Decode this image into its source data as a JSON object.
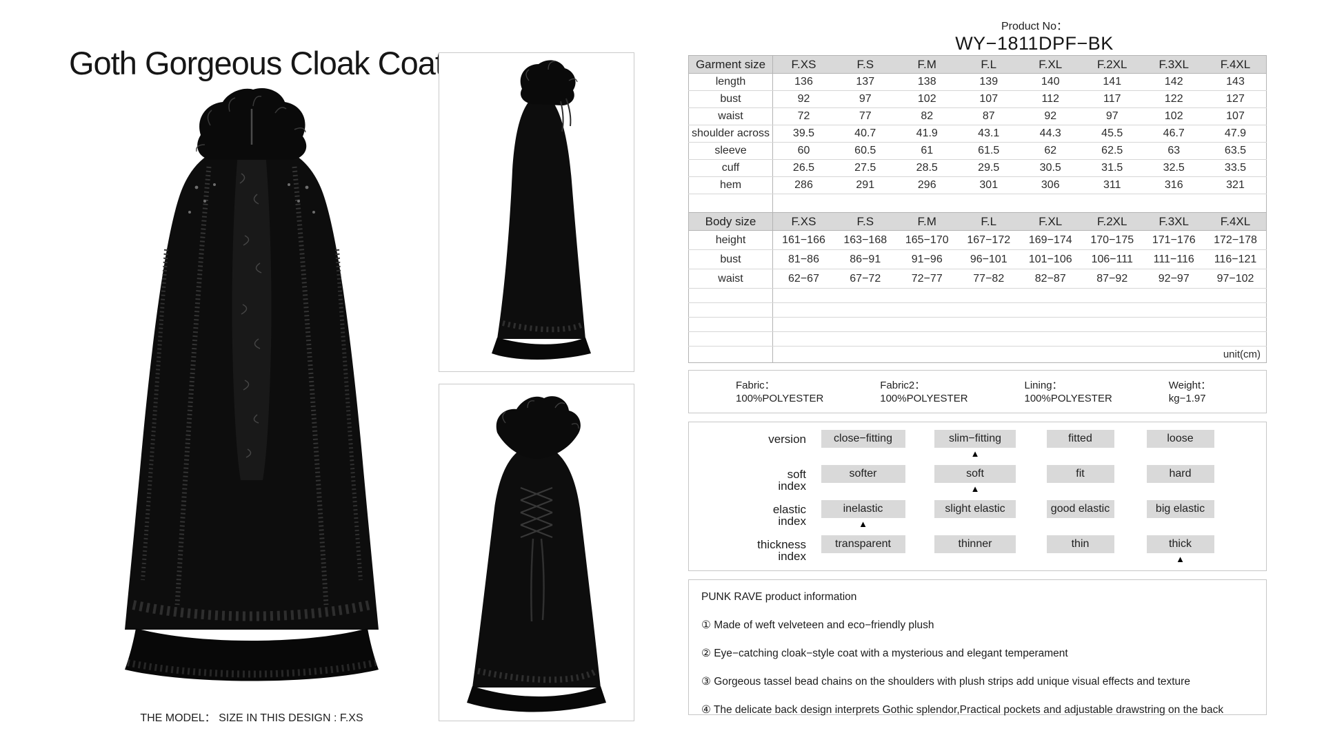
{
  "title": "Goth Gorgeous Cloak Coat",
  "product_no": {
    "label": "Product No：",
    "value": "WY−1811DPF−BK"
  },
  "garment_table": {
    "header": [
      "Garment size",
      "F.XS",
      "F.S",
      "F.M",
      "F.L",
      "F.XL",
      "F.2XL",
      "F.3XL",
      "F.4XL"
    ],
    "rows": [
      {
        "label": "length",
        "values": [
          "136",
          "137",
          "138",
          "139",
          "140",
          "141",
          "142",
          "143"
        ]
      },
      {
        "label": "bust",
        "values": [
          "92",
          "97",
          "102",
          "107",
          "112",
          "117",
          "122",
          "127"
        ]
      },
      {
        "label": "waist",
        "values": [
          "72",
          "77",
          "82",
          "87",
          "92",
          "97",
          "102",
          "107"
        ]
      },
      {
        "label": "shoulder across",
        "values": [
          "39.5",
          "40.7",
          "41.9",
          "43.1",
          "44.3",
          "45.5",
          "46.7",
          "47.9"
        ]
      },
      {
        "label": "sleeve",
        "values": [
          "60",
          "60.5",
          "61",
          "61.5",
          "62",
          "62.5",
          "63",
          "63.5"
        ]
      },
      {
        "label": "cuff",
        "values": [
          "26.5",
          "27.5",
          "28.5",
          "29.5",
          "30.5",
          "31.5",
          "32.5",
          "33.5"
        ]
      },
      {
        "label": "hem",
        "values": [
          "286",
          "291",
          "296",
          "301",
          "306",
          "311",
          "316",
          "321"
        ]
      }
    ]
  },
  "body_table": {
    "header": [
      "Body size",
      "F.XS",
      "F.S",
      "F.M",
      "F.L",
      "F.XL",
      "F.2XL",
      "F.3XL",
      "F.4XL"
    ],
    "rows": [
      {
        "label": "height",
        "values": [
          "161−166",
          "163−168",
          "165−170",
          "167−172",
          "169−174",
          "170−175",
          "171−176",
          "172−178"
        ]
      },
      {
        "label": "bust",
        "values": [
          "81−86",
          "86−91",
          "91−96",
          "96−101",
          "101−106",
          "106−111",
          "111−116",
          "116−121"
        ]
      },
      {
        "label": "waist",
        "values": [
          "62−67",
          "67−72",
          "72−77",
          "77−82",
          "82−87",
          "87−92",
          "92−97",
          "97−102"
        ]
      }
    ]
  },
  "empty_rows": 4,
  "unit_note": "unit(cm)",
  "fabric_info": [
    {
      "label": "Fabric：",
      "value": "100%POLYESTER"
    },
    {
      "label": "Fabric2：",
      "value": "100%POLYESTER"
    },
    {
      "label": "Lining：",
      "value": "100%POLYESTER"
    },
    {
      "label": "Weight：",
      "value": "kg−1.97"
    }
  ],
  "index_grid": {
    "marker": "▲",
    "rows": [
      {
        "label": "version",
        "cells": [
          "close−fitting",
          "slim−fitting",
          "fitted",
          "loose"
        ],
        "marker_index": 1
      },
      {
        "label": "soft\nindex",
        "cells": [
          "softer",
          "soft",
          "fit",
          "hard"
        ],
        "marker_index": 1
      },
      {
        "label": "elastic\nindex",
        "cells": [
          "inelastic",
          "slight elastic",
          "good elastic",
          "big elastic"
        ],
        "marker_index": 0
      },
      {
        "label": "thickness\nindex",
        "cells": [
          "transparent",
          "thinner",
          "thin",
          "thick"
        ],
        "marker_index": 3
      }
    ]
  },
  "product_info": {
    "title": "PUNK RAVE product information",
    "items": [
      "① Made of weft velveteen and eco−friendly plush",
      "② Eye−catching cloak−style coat with a mysterious and elegant temperament",
      "③ Gorgeous tassel bead chains on the shoulders with plush strips add unique visual effects and texture",
      "④ The delicate back design interprets Gothic splendor,Practical pockets and adjustable drawstring on the back"
    ]
  },
  "model_note": "THE MODEL：  SIZE IN THIS DESIGN : F.XS",
  "colors": {
    "table_header_bg": "#d9d9d9",
    "pill_bg": "#d9d9d9",
    "box_border": "#c6c6c6",
    "text": "#2b2b2b",
    "coat": "#0d0d0d"
  }
}
